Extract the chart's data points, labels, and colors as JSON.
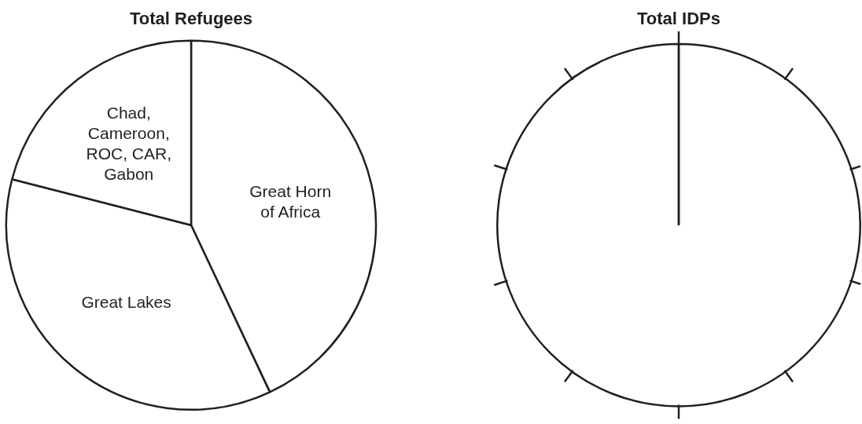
{
  "chart_data": [
    {
      "type": "pie",
      "title": "Total Refugees",
      "categories": [
        "Great Horn of Africa",
        "Great Lakes",
        "Chad, Cameroon, ROC, CAR, Gabon"
      ],
      "values": [
        43,
        36,
        21
      ],
      "colors": [
        "#ffffff",
        "#ffffff",
        "#ffffff"
      ]
    },
    {
      "type": "pie",
      "title": "Total IDPs",
      "categories": [
        null
      ],
      "values": [
        100
      ],
      "colors": [
        "#ffffff"
      ]
    }
  ]
}
